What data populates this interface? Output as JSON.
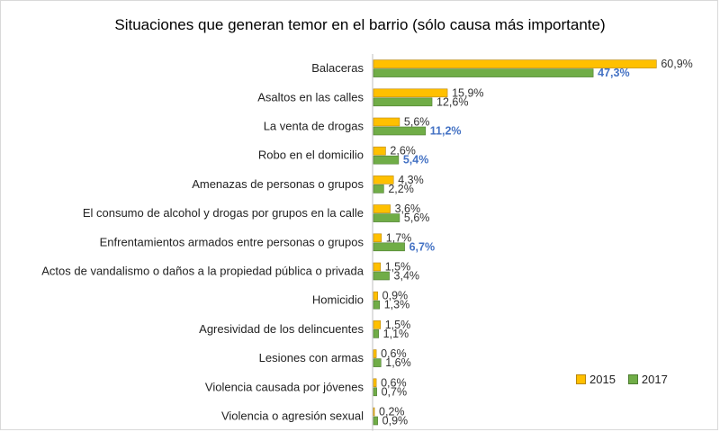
{
  "chart_data": {
    "type": "bar",
    "orientation": "horizontal",
    "title": "Situaciones que generan temor en el barrio (sólo causa más importante)",
    "categories": [
      "Balaceras",
      "Asaltos en las calles",
      "La venta de drogas",
      "Robo en el domicilio",
      "Amenazas de personas o grupos",
      "El consumo de alcohol y drogas por grupos en la calle",
      "Enfrentamientos armados entre personas o grupos",
      "Actos de vandalismo o daños a la propiedad pública o privada",
      "Homicidio",
      "Agresividad de los delincuentes",
      "Lesiones con armas",
      "Violencia causada por jóvenes",
      "Violencia o agresión sexual"
    ],
    "series": [
      {
        "name": "2015",
        "color": "#ffc000",
        "values": [
          60.9,
          15.9,
          5.6,
          2.6,
          4.3,
          3.6,
          1.7,
          1.5,
          0.9,
          1.5,
          0.6,
          0.6,
          0.2
        ],
        "labels": [
          "60,9%",
          "15,9%",
          "5,6%",
          "2,6%",
          "4,3%",
          "3,6%",
          "1,7%",
          "1,5%",
          "0,9%",
          "1,5%",
          "0,6%",
          "0,6%",
          "0,2%"
        ]
      },
      {
        "name": "2017",
        "color": "#70ad47",
        "values": [
          47.3,
          12.6,
          11.2,
          5.4,
          2.2,
          5.6,
          6.7,
          3.4,
          1.3,
          1.1,
          1.6,
          0.7,
          0.9
        ],
        "labels": [
          "47,3%",
          "12,6%",
          "11,2%",
          "5,4%",
          "2,2%",
          "5,6%",
          "6,7%",
          "3,4%",
          "1,3%",
          "1,1%",
          "1,6%",
          "0,7%",
          "0,9%"
        ],
        "highlighted": [
          true,
          false,
          true,
          true,
          false,
          false,
          true,
          false,
          false,
          false,
          false,
          false,
          false
        ],
        "highlight_color": "#4472c4"
      }
    ],
    "legend_position": "bottom-right",
    "xlim": [
      0,
      62
    ],
    "grid": false
  }
}
